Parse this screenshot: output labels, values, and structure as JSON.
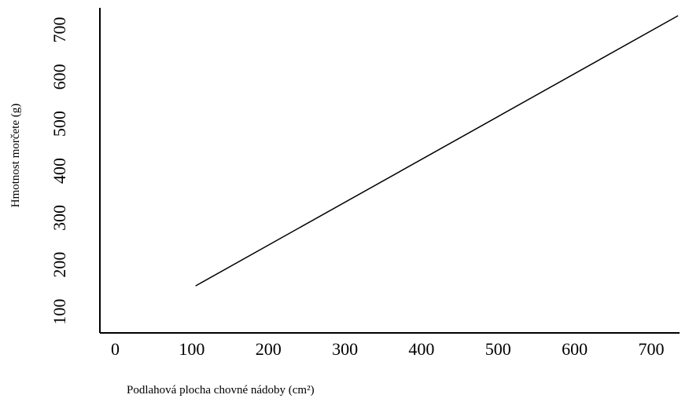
{
  "chart_data": {
    "type": "line",
    "xlabel": "Podlahová plocha chovné nádoby (cm²)",
    "ylabel": "Hmotnost morčete (g)",
    "xlim": [
      0,
      750
    ],
    "ylim": [
      50,
      750
    ],
    "x_ticks": [
      "0",
      "100",
      "200",
      "300",
      "400",
      "500",
      "600",
      "700"
    ],
    "y_ticks": [
      "100",
      "200",
      "300",
      "400",
      "500",
      "600",
      "700"
    ],
    "grid": false,
    "series": [
      {
        "x": [
          105,
          735
        ],
        "y": [
          155,
          730
        ]
      }
    ],
    "colors": {
      "line": "#000000",
      "axis": "#000000"
    }
  }
}
